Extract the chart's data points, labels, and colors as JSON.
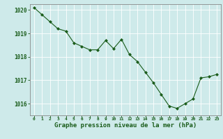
{
  "x": [
    0,
    1,
    2,
    3,
    4,
    5,
    6,
    7,
    8,
    9,
    10,
    11,
    12,
    13,
    14,
    15,
    16,
    17,
    18,
    19,
    20,
    21,
    22,
    23
  ],
  "y": [
    1020.1,
    1019.8,
    1019.5,
    1019.2,
    1019.1,
    1018.6,
    1018.45,
    1018.3,
    1018.3,
    1018.7,
    1018.35,
    1018.75,
    1018.1,
    1017.8,
    1017.35,
    1016.9,
    1016.4,
    1015.9,
    1015.8,
    1016.0,
    1016.2,
    1017.1,
    1017.15,
    1017.25
  ],
  "ylim": [
    1015.5,
    1020.25
  ],
  "yticks": [
    1016,
    1017,
    1018,
    1019,
    1020
  ],
  "xticks": [
    0,
    1,
    2,
    3,
    4,
    5,
    6,
    7,
    8,
    9,
    10,
    11,
    12,
    13,
    14,
    15,
    16,
    17,
    18,
    19,
    20,
    21,
    22,
    23
  ],
  "line_color": "#1a5c1a",
  "marker_color": "#1a5c1a",
  "bg_color": "#ceeaea",
  "grid_color": "#ffffff",
  "xlabel": "Graphe pression niveau de la mer (hPa)",
  "xlabel_color": "#1a5c1a",
  "tick_color": "#1a5c1a",
  "axis_color": "#888888",
  "marker": "D",
  "marker_size": 2.0,
  "line_width": 0.8
}
